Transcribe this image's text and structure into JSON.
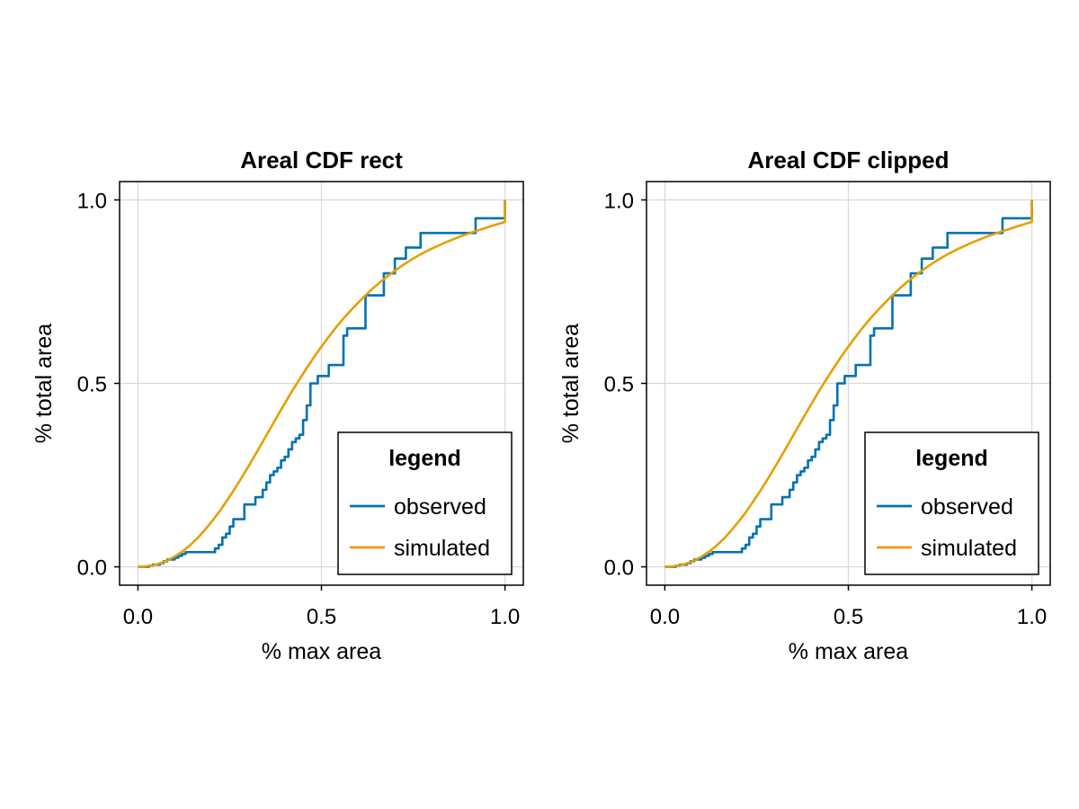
{
  "chart_data": [
    {
      "type": "line",
      "title": "Areal CDF rect",
      "xlabel": "% max area",
      "ylabel": "% total area",
      "xlim": [
        -0.05,
        1.05
      ],
      "ylim": [
        -0.05,
        1.05
      ],
      "xticks": [
        0.0,
        0.5,
        1.0
      ],
      "xtick_labels": [
        "0.0",
        "0.5",
        "1.0"
      ],
      "yticks": [
        0.0,
        0.5,
        1.0
      ],
      "ytick_labels": [
        "0.0",
        "0.5",
        "1.0"
      ],
      "grid": true,
      "legend": {
        "title": "legend",
        "position": "bottom-right"
      },
      "series": [
        {
          "name": "observed",
          "style": "step",
          "color": "#0072b2",
          "x": [
            0.0,
            0.03,
            0.04,
            0.06,
            0.07,
            0.08,
            0.1,
            0.11,
            0.12,
            0.13,
            0.14,
            0.15,
            0.21,
            0.22,
            0.23,
            0.24,
            0.25,
            0.26,
            0.28,
            0.29,
            0.31,
            0.32,
            0.34,
            0.35,
            0.36,
            0.37,
            0.38,
            0.39,
            0.4,
            0.41,
            0.42,
            0.43,
            0.44,
            0.45,
            0.46,
            0.47,
            0.49,
            0.52,
            0.56,
            0.57,
            0.59,
            0.62,
            0.65,
            0.67,
            0.7,
            0.73,
            0.77,
            0.92,
            1.0
          ],
          "y": [
            0.0,
            0.003,
            0.006,
            0.01,
            0.015,
            0.02,
            0.025,
            0.03,
            0.035,
            0.04,
            0.04,
            0.04,
            0.05,
            0.06,
            0.08,
            0.09,
            0.11,
            0.13,
            0.13,
            0.17,
            0.17,
            0.19,
            0.21,
            0.23,
            0.25,
            0.26,
            0.27,
            0.29,
            0.3,
            0.32,
            0.34,
            0.35,
            0.36,
            0.4,
            0.44,
            0.5,
            0.52,
            0.55,
            0.63,
            0.65,
            0.65,
            0.74,
            0.74,
            0.8,
            0.84,
            0.87,
            0.91,
            0.95,
            1.0
          ]
        },
        {
          "name": "simulated",
          "style": "line",
          "color": "#e69f00",
          "x": [
            0.0,
            0.02,
            0.04,
            0.06,
            0.08,
            0.1,
            0.12,
            0.14,
            0.16,
            0.18,
            0.2,
            0.22,
            0.24,
            0.26,
            0.28,
            0.3,
            0.32,
            0.34,
            0.36,
            0.38,
            0.4,
            0.42,
            0.44,
            0.46,
            0.48,
            0.5,
            0.52,
            0.54,
            0.56,
            0.58,
            0.6,
            0.62,
            0.64,
            0.66,
            0.68,
            0.7,
            0.72,
            0.74,
            0.76,
            0.78,
            0.8,
            0.82,
            0.84,
            0.86,
            0.88,
            0.9,
            0.92,
            0.94,
            0.96,
            0.98,
            1.0,
            1.0
          ],
          "y": [
            0.0,
            0.001,
            0.004,
            0.009,
            0.017,
            0.028,
            0.041,
            0.057,
            0.076,
            0.098,
            0.122,
            0.148,
            0.177,
            0.207,
            0.239,
            0.272,
            0.306,
            0.341,
            0.376,
            0.411,
            0.445,
            0.479,
            0.511,
            0.542,
            0.572,
            0.6,
            0.627,
            0.653,
            0.677,
            0.699,
            0.72,
            0.74,
            0.759,
            0.776,
            0.792,
            0.807,
            0.821,
            0.834,
            0.846,
            0.857,
            0.867,
            0.876,
            0.885,
            0.893,
            0.901,
            0.908,
            0.915,
            0.921,
            0.928,
            0.934,
            0.94,
            1.0
          ]
        }
      ]
    },
    {
      "type": "line",
      "title": "Areal CDF clipped",
      "xlabel": "% max area",
      "ylabel": "% total area",
      "xlim": [
        -0.05,
        1.05
      ],
      "ylim": [
        -0.05,
        1.05
      ],
      "xticks": [
        0.0,
        0.5,
        1.0
      ],
      "xtick_labels": [
        "0.0",
        "0.5",
        "1.0"
      ],
      "yticks": [
        0.0,
        0.5,
        1.0
      ],
      "ytick_labels": [
        "0.0",
        "0.5",
        "1.0"
      ],
      "grid": true,
      "legend": {
        "title": "legend",
        "position": "bottom-right"
      },
      "series": [
        {
          "name": "observed",
          "style": "step",
          "color": "#0072b2",
          "x": [
            0.0,
            0.03,
            0.04,
            0.06,
            0.07,
            0.08,
            0.1,
            0.11,
            0.12,
            0.13,
            0.14,
            0.15,
            0.21,
            0.22,
            0.23,
            0.24,
            0.25,
            0.26,
            0.28,
            0.29,
            0.31,
            0.32,
            0.34,
            0.35,
            0.36,
            0.37,
            0.38,
            0.39,
            0.4,
            0.41,
            0.42,
            0.43,
            0.44,
            0.45,
            0.46,
            0.47,
            0.49,
            0.52,
            0.56,
            0.57,
            0.59,
            0.62,
            0.65,
            0.67,
            0.7,
            0.73,
            0.77,
            0.92,
            1.0
          ],
          "y": [
            0.0,
            0.003,
            0.006,
            0.01,
            0.015,
            0.02,
            0.025,
            0.03,
            0.035,
            0.04,
            0.04,
            0.04,
            0.05,
            0.06,
            0.08,
            0.09,
            0.11,
            0.13,
            0.13,
            0.17,
            0.17,
            0.19,
            0.21,
            0.23,
            0.25,
            0.26,
            0.27,
            0.29,
            0.3,
            0.32,
            0.34,
            0.35,
            0.36,
            0.4,
            0.44,
            0.5,
            0.52,
            0.55,
            0.63,
            0.65,
            0.65,
            0.74,
            0.74,
            0.8,
            0.84,
            0.87,
            0.91,
            0.95,
            1.0
          ]
        },
        {
          "name": "simulated",
          "style": "line",
          "color": "#e69f00",
          "x": [
            0.0,
            0.02,
            0.04,
            0.06,
            0.08,
            0.1,
            0.12,
            0.14,
            0.16,
            0.18,
            0.2,
            0.22,
            0.24,
            0.26,
            0.28,
            0.3,
            0.32,
            0.34,
            0.36,
            0.38,
            0.4,
            0.42,
            0.44,
            0.46,
            0.48,
            0.5,
            0.52,
            0.54,
            0.56,
            0.58,
            0.6,
            0.62,
            0.64,
            0.66,
            0.68,
            0.7,
            0.72,
            0.74,
            0.76,
            0.78,
            0.8,
            0.82,
            0.84,
            0.86,
            0.88,
            0.9,
            0.92,
            0.94,
            0.96,
            0.98,
            1.0,
            1.0
          ],
          "y": [
            0.0,
            0.001,
            0.004,
            0.009,
            0.017,
            0.028,
            0.041,
            0.057,
            0.076,
            0.098,
            0.122,
            0.148,
            0.177,
            0.207,
            0.239,
            0.272,
            0.306,
            0.341,
            0.376,
            0.411,
            0.445,
            0.479,
            0.511,
            0.542,
            0.572,
            0.6,
            0.627,
            0.653,
            0.677,
            0.699,
            0.72,
            0.74,
            0.759,
            0.776,
            0.792,
            0.807,
            0.821,
            0.834,
            0.846,
            0.857,
            0.867,
            0.876,
            0.885,
            0.893,
            0.901,
            0.908,
            0.915,
            0.921,
            0.928,
            0.934,
            0.94,
            1.0
          ]
        }
      ]
    }
  ]
}
